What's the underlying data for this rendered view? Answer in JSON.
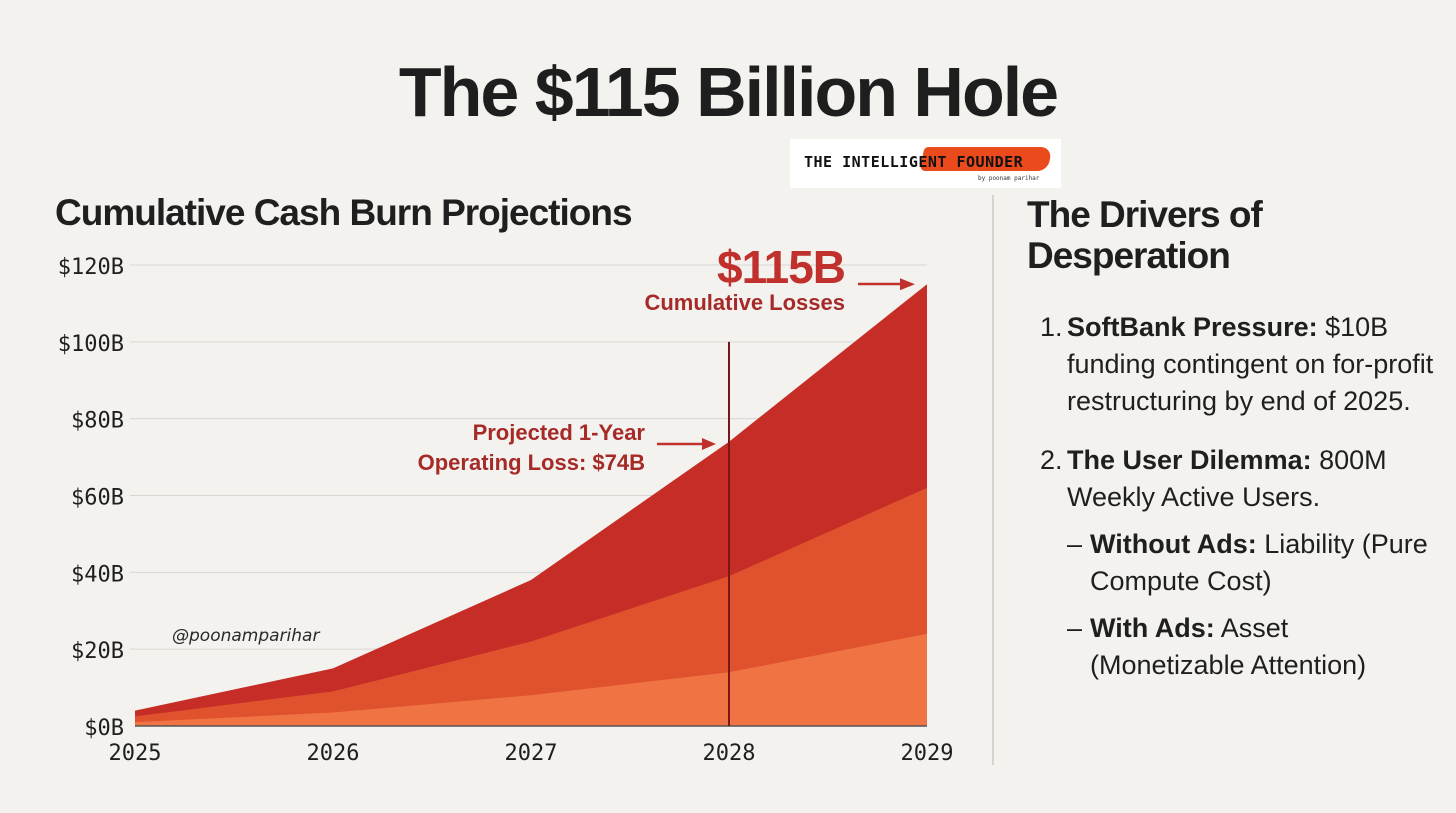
{
  "title": "The $115 Billion Hole",
  "brand": {
    "name": "THE INTELLIGENT FOUNDER",
    "byline": "by poonam parihar"
  },
  "chart_data": {
    "type": "area",
    "title": "Cumulative Cash Burn Projections",
    "x": [
      "2025",
      "2026",
      "2027",
      "2028",
      "2029"
    ],
    "series": [
      {
        "values": [
          1,
          3.5,
          8,
          14,
          24
        ],
        "color": "#f07443"
      },
      {
        "values": [
          2.5,
          9,
          22,
          39,
          62
        ],
        "color": "#e0512e"
      },
      {
        "values": [
          4,
          15,
          38,
          74,
          115
        ],
        "color": "#c62d26"
      }
    ],
    "ylim": [
      0,
      120
    ],
    "y_ticks": [
      0,
      20,
      40,
      60,
      80,
      100,
      120
    ],
    "y_tick_labels": [
      "$0B",
      "$20B",
      "$40B",
      "$60B",
      "$80B",
      "$100B",
      "$120B"
    ],
    "grid": true,
    "annotations": {
      "headline_value": "$115B",
      "headline_label": "Cumulative Losses",
      "marker_x": "2028",
      "marker_lines": [
        "Projected 1-Year",
        "Operating Loss: $74B"
      ]
    },
    "watermark": "@poonamparihar"
  },
  "sidebar": {
    "title": "The Drivers of Desperation",
    "items": [
      {
        "number": "1.",
        "label": "SoftBank Pressure:",
        "text": "$10B funding contingent on for-profit restructuring by end of 2025."
      },
      {
        "number": "2.",
        "label": "The User Dilemma:",
        "text": "800M Weekly Active Users.",
        "subitems": [
          {
            "dash": "–",
            "label": "Without Ads:",
            "text": "Liability (Pure Compute Cost)"
          },
          {
            "dash": "–",
            "label": "With Ads:",
            "text": "Asset (Monetizable Attention)"
          }
        ]
      }
    ]
  }
}
